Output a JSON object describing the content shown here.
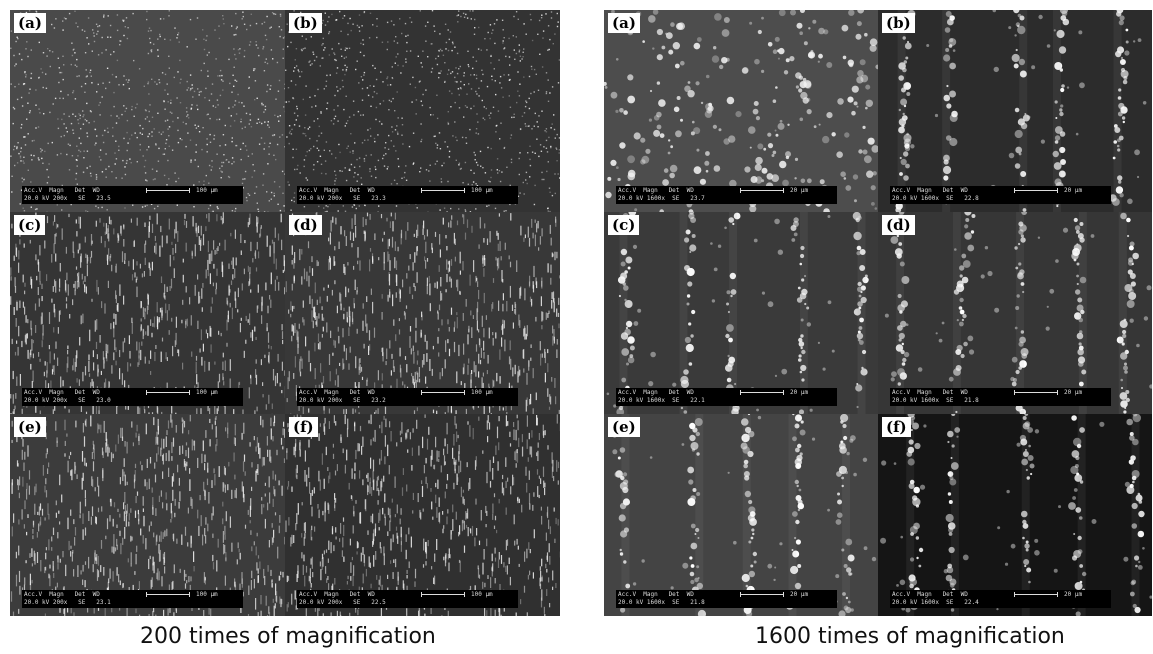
{
  "captions": {
    "left": "200 times of magnification",
    "right": "1600 times of magnification"
  },
  "scalebar_header": "Acc.V  Magn   Det  WD",
  "left_panels": [
    {
      "label": "(a)",
      "info": "20.0 kV 200x   SE   23.5",
      "length": "100 µm",
      "tone": "#4a4a4a",
      "style": "fine"
    },
    {
      "label": "(b)",
      "info": "20.0 kV 200x   SE   23.3",
      "length": "100 µm",
      "tone": "#333333",
      "style": "fine"
    },
    {
      "label": "(c)",
      "info": "20.0 kV 200x   SE   23.0",
      "length": "100 µm",
      "tone": "#353535",
      "style": "streak"
    },
    {
      "label": "(d)",
      "info": "20.0 kV 200x   SE   23.2",
      "length": "100 µm",
      "tone": "#383838",
      "style": "streak"
    },
    {
      "label": "(e)",
      "info": "20.0 kV 200x   SE   23.1",
      "length": "100 µm",
      "tone": "#3c3c3c",
      "style": "streak"
    },
    {
      "label": "(f)",
      "info": "20.0 kV 200x   SE   22.5",
      "length": "100 µm",
      "tone": "#303030",
      "style": "streak"
    }
  ],
  "right_panels": [
    {
      "label": "(a)",
      "info": "20.0 kV 1600x  SE   23.7",
      "length": "20 µm",
      "tone": "#4d4d4d",
      "style": "dots"
    },
    {
      "label": "(b)",
      "info": "20.0 kV 1600x  SE   22.8",
      "length": "20 µm",
      "tone": "#2c2c2c",
      "style": "bands"
    },
    {
      "label": "(c)",
      "info": "20.0 kV 1600x  SE   22.1",
      "length": "20 µm",
      "tone": "#3a3a3a",
      "style": "bands"
    },
    {
      "label": "(d)",
      "info": "20.0 kV 1600x  SE   21.8",
      "length": "20 µm",
      "tone": "#363636",
      "style": "bands"
    },
    {
      "label": "(e)",
      "info": "20.0 kV 1600x  SE   21.8",
      "length": "20 µm",
      "tone": "#444444",
      "style": "bands"
    },
    {
      "label": "(f)",
      "info": "20.0 kV 1600x  SE   22.4",
      "length": "20 µm",
      "tone": "#151515",
      "style": "bands"
    }
  ]
}
